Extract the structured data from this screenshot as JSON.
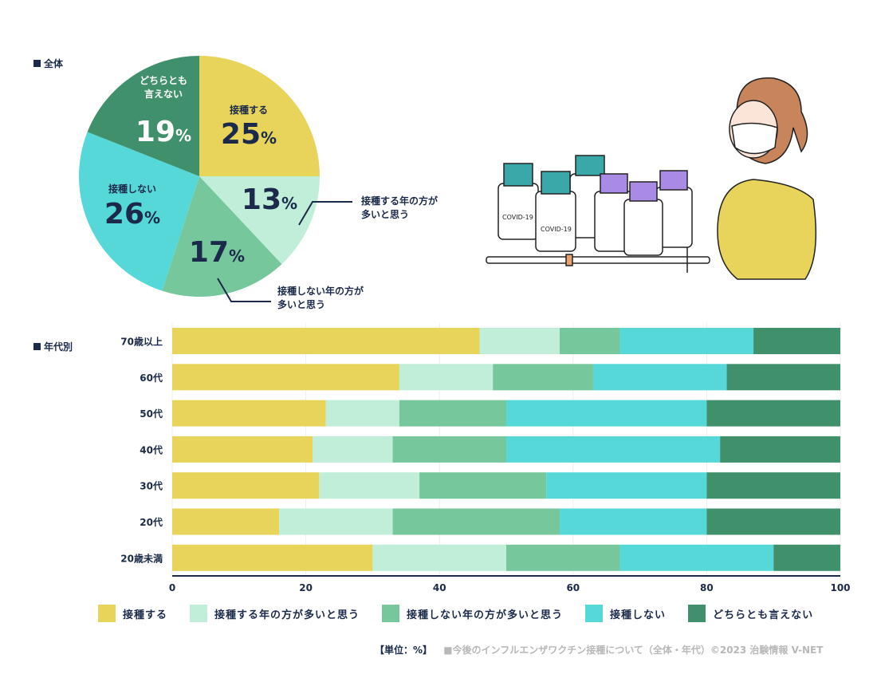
{
  "sections": {
    "overall": "全体",
    "by_age": "年代別"
  },
  "colors": {
    "yes": "#e8d45a",
    "yes_later": "#c0eed8",
    "no_later": "#76c79c",
    "no": "#56d8d8",
    "unsure": "#41906c",
    "text": "#1b2a4a"
  },
  "chart_data": [
    {
      "type": "pie",
      "title": "全体",
      "slices": [
        {
          "label": "接種する",
          "value": 25,
          "value_label": "25",
          "unit": "%",
          "color": "#e8d45a"
        },
        {
          "label": "接種する年の方が多いと思う",
          "label_lines": [
            "接種する年の方が",
            "多いと思う"
          ],
          "value": 13,
          "value_label": "13",
          "unit": "%",
          "color": "#c0eed8"
        },
        {
          "label": "接種しない年の方が多いと思う",
          "label_lines": [
            "接種しない年の方が",
            "多いと思う"
          ],
          "value": 17,
          "value_label": "17",
          "unit": "%",
          "color": "#76c79c"
        },
        {
          "label": "接種しない",
          "value": 26,
          "value_label": "26",
          "unit": "%",
          "color": "#56d8d8"
        },
        {
          "label": "どちらとも言えない",
          "label_lines": [
            "どちらとも",
            "言えない"
          ],
          "value": 19,
          "value_label": "19",
          "unit": "%",
          "color": "#41906c"
        }
      ]
    },
    {
      "type": "bar",
      "orientation": "horizontal",
      "stacked": true,
      "title": "年代別",
      "categories": [
        "70歳以上",
        "60代",
        "50代",
        "40代",
        "30代",
        "20代",
        "20歳未満"
      ],
      "series": [
        {
          "name": "接種する",
          "color": "#e8d45a",
          "values": [
            46,
            34,
            23,
            21,
            22,
            16,
            30
          ]
        },
        {
          "name": "接種する年の方が多いと思う",
          "color": "#c0eed8",
          "values": [
            12,
            14,
            11,
            12,
            15,
            17,
            20
          ]
        },
        {
          "name": "接種しない年の方が多いと思う",
          "color": "#76c79c",
          "values": [
            9,
            15,
            16,
            17,
            19,
            25,
            17
          ]
        },
        {
          "name": "接種しない",
          "color": "#56d8d8",
          "values": [
            20,
            20,
            30,
            32,
            24,
            22,
            23
          ]
        },
        {
          "name": "どちらとも言えない",
          "color": "#41906c",
          "values": [
            13,
            17,
            20,
            18,
            20,
            20,
            10
          ]
        }
      ],
      "xlim": [
        0,
        100
      ],
      "xticks": [
        "0",
        "20",
        "40",
        "60",
        "80",
        "100"
      ],
      "grid": true,
      "legend": "bottom"
    }
  ],
  "footer": {
    "unit": "【単位：%】",
    "source": "■今後のインフルエンザワクチン接種について（全体・年代）©2023 治験情報 V-NET"
  },
  "illustration": {
    "vial_label": "COVID-19"
  }
}
